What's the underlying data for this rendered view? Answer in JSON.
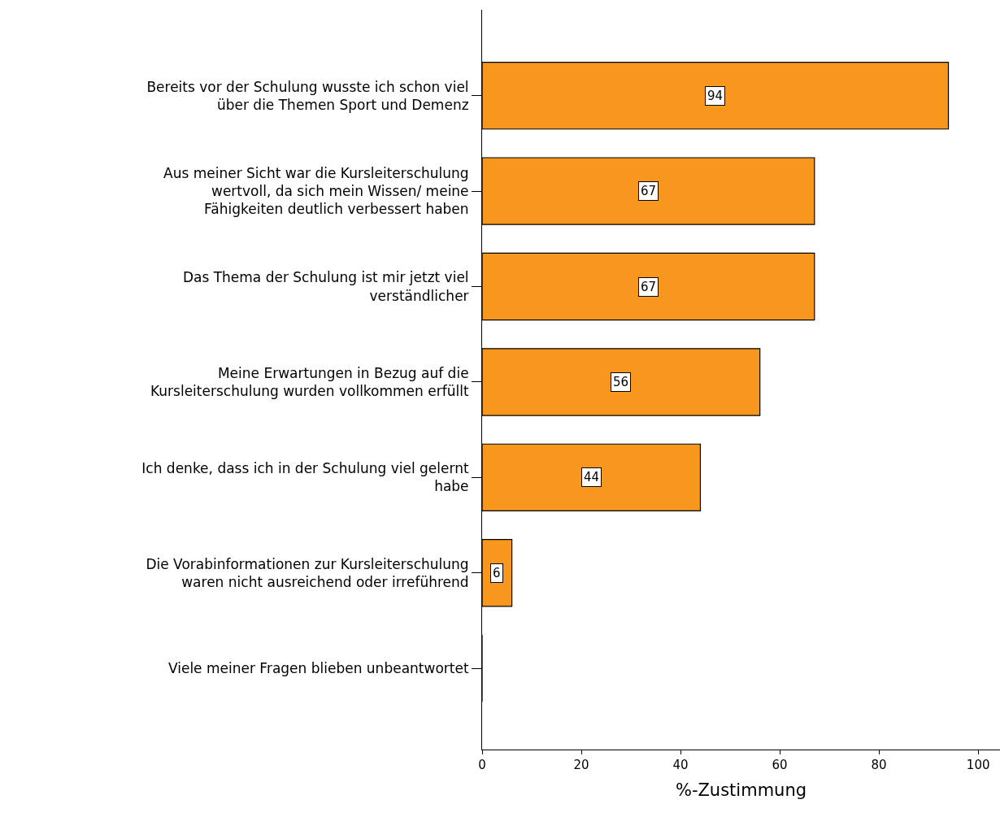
{
  "chart_data": {
    "type": "bar",
    "orientation": "horizontal",
    "xlabel": "%-Zustimmung",
    "categories": [
      "Bereits vor der Schulung wusste ich schon viel\nüber die Themen Sport und Demenz",
      "Aus meiner Sicht war die Kursleiterschulung\nwertvoll, da sich mein Wissen/ meine\nFähigkeiten deutlich verbessert haben",
      "Das Thema der Schulung ist mir jetzt viel\nverständlicher",
      "Meine Erwartungen in Bezug auf die\nKursleiterschulung wurden vollkommen erfüllt",
      "Ich denke, dass ich in der Schulung viel gelernt\nhabe",
      "Die Vorabinformationen zur Kursleiterschulung\nwaren nicht ausreichend oder irreführend",
      "Viele meiner Fragen blieben unbeantwortet"
    ],
    "values": [
      94,
      67,
      67,
      56,
      44,
      6,
      0
    ],
    "value_labels": [
      "94",
      "67",
      "67",
      "56",
      "44",
      "6",
      null
    ],
    "color": "#f7971e",
    "xlim": [
      0,
      104.4
    ],
    "xticks": [
      0,
      20,
      40,
      60,
      80,
      100
    ],
    "legend": false
  }
}
